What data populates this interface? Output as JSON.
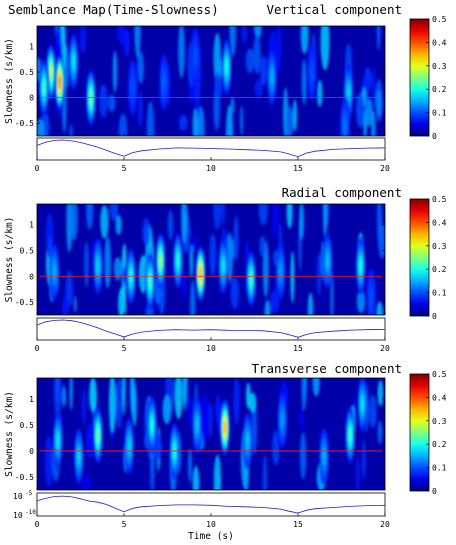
{
  "figure_title": "Semblance Map(Time-Slowness)",
  "colors": {
    "redline": "#ff2020",
    "trace": "#1c1cd6",
    "frame": "#000000",
    "colormap": "jet"
  },
  "chart_data": [
    {
      "type": "heatmap",
      "title": "Vertical component",
      "xlabel": "",
      "ylabel": "Slowness (s/km)",
      "xlim": [
        0,
        20
      ],
      "ylim": [
        -0.75,
        1.4
      ],
      "yticks": [
        -0.5,
        0,
        0.5,
        1
      ],
      "xticks": [
        0,
        5,
        10,
        15,
        20
      ],
      "colorbar": {
        "min": 0,
        "max": 0.5,
        "ticks": [
          0,
          0.1,
          0.2,
          0.3,
          0.4,
          0.5
        ]
      },
      "reference_line": {
        "slowness": 0,
        "color": "#ff2020"
      },
      "hotspots": [
        {
          "t": 1.3,
          "s": 0.3,
          "value": 0.38
        },
        {
          "t": 0.8,
          "s": 0.5,
          "value": 0.28
        },
        {
          "t": 0.4,
          "s": 0.2,
          "value": 0.22
        },
        {
          "t": 3.1,
          "s": 0.0,
          "value": 0.24
        },
        {
          "t": 2.1,
          "s": 0.7,
          "value": 0.18
        },
        {
          "t": 10.9,
          "s": 0.6,
          "value": 0.2
        },
        {
          "t": 13.5,
          "s": 0.4,
          "value": 0.15
        },
        {
          "t": 17.9,
          "s": 0.1,
          "value": 0.17
        },
        {
          "t": 17.7,
          "s": -0.55,
          "value": 0.12
        },
        {
          "t": 5.5,
          "s": 0.2,
          "value": 0.1
        },
        {
          "t": 7.3,
          "s": 0.3,
          "value": 0.11
        },
        {
          "t": 9.1,
          "s": 0.8,
          "value": 0.1
        },
        {
          "t": 15.8,
          "s": 0.5,
          "value": 0.1
        }
      ],
      "trace": {
        "t": [
          0,
          0.5,
          1,
          1.5,
          2,
          2.5,
          3,
          3.5,
          4,
          4.5,
          5,
          5.5,
          6,
          7,
          8,
          9,
          10,
          11,
          12,
          13,
          14,
          14.5,
          15,
          15.5,
          16,
          17,
          18,
          19,
          20
        ],
        "level": [
          0.7,
          0.88,
          0.98,
          1.0,
          0.95,
          0.86,
          0.74,
          0.6,
          0.42,
          0.25,
          0.1,
          0.3,
          0.4,
          0.5,
          0.56,
          0.55,
          0.53,
          0.5,
          0.46,
          0.42,
          0.34,
          0.22,
          0.07,
          0.28,
          0.38,
          0.48,
          0.52,
          0.55,
          0.56
        ]
      }
    },
    {
      "type": "heatmap",
      "title": "Radial component",
      "xlabel": "",
      "ylabel": "Slowness (s/km)",
      "xlim": [
        0,
        20
      ],
      "ylim": [
        -0.75,
        1.4
      ],
      "yticks": [
        -0.5,
        0,
        0.5,
        1
      ],
      "xticks": [
        0,
        5,
        10,
        15,
        20
      ],
      "colorbar": {
        "min": 0,
        "max": 0.5,
        "ticks": [
          0,
          0.1,
          0.2,
          0.3,
          0.4,
          0.5
        ]
      },
      "reference_line": {
        "slowness": 0,
        "color": "#ff2020"
      },
      "hotspots": [
        {
          "t": 9.4,
          "s": 0.05,
          "value": 0.35
        },
        {
          "t": 7.1,
          "s": 0.3,
          "value": 0.26
        },
        {
          "t": 6.5,
          "s": -0.1,
          "value": 0.22
        },
        {
          "t": 8.1,
          "s": 0.3,
          "value": 0.2
        },
        {
          "t": 5.4,
          "s": 0.0,
          "value": 0.2
        },
        {
          "t": 12.3,
          "s": -0.05,
          "value": 0.22
        },
        {
          "t": 10.7,
          "s": 0.2,
          "value": 0.18
        },
        {
          "t": 3.5,
          "s": 0.2,
          "value": 0.17
        },
        {
          "t": 1.0,
          "s": 0.1,
          "value": 0.15
        },
        {
          "t": 18.6,
          "s": 0.2,
          "value": 0.2
        },
        {
          "t": 16.7,
          "s": 0.3,
          "value": 0.16
        },
        {
          "t": 14.0,
          "s": 0.1,
          "value": 0.14
        },
        {
          "t": 19.2,
          "s": -0.4,
          "value": 0.1
        }
      ],
      "trace": {
        "t": [
          0,
          0.5,
          1,
          1.5,
          2,
          2.5,
          3,
          3.5,
          4,
          4.5,
          5,
          5.5,
          6,
          7,
          8,
          9,
          10,
          11,
          12,
          13,
          14,
          14.5,
          15,
          15.5,
          16,
          17,
          18,
          19,
          20
        ],
        "level": [
          0.72,
          0.9,
          0.98,
          1.0,
          0.96,
          0.86,
          0.72,
          0.56,
          0.38,
          0.22,
          0.06,
          0.22,
          0.33,
          0.42,
          0.46,
          0.44,
          0.46,
          0.43,
          0.42,
          0.4,
          0.3,
          0.18,
          0.04,
          0.2,
          0.3,
          0.38,
          0.44,
          0.46,
          0.48
        ]
      }
    },
    {
      "type": "heatmap",
      "title": "Transverse component",
      "xlabel": "Time (s)",
      "ylabel": "Slowness (s/km)",
      "xlim": [
        0,
        20
      ],
      "ylim": [
        -0.75,
        1.4
      ],
      "yticks": [
        -0.5,
        0,
        0.5,
        1
      ],
      "xticks": [
        0,
        5,
        10,
        15,
        20
      ],
      "colorbar": {
        "min": 0,
        "max": 0.5,
        "ticks": [
          0,
          0.1,
          0.2,
          0.3,
          0.4,
          0.5
        ]
      },
      "reference_line": {
        "slowness": 0,
        "color": "#ff2020"
      },
      "hotspots": [
        {
          "t": 10.8,
          "s": 0.45,
          "value": 0.35
        },
        {
          "t": 3.5,
          "s": 0.3,
          "value": 0.24
        },
        {
          "t": 6.6,
          "s": 0.5,
          "value": 0.2
        },
        {
          "t": 7.9,
          "s": 0.0,
          "value": 0.2
        },
        {
          "t": 1.2,
          "s": 0.2,
          "value": 0.18
        },
        {
          "t": 2.4,
          "s": -0.1,
          "value": 0.17
        },
        {
          "t": 5.3,
          "s": 0.1,
          "value": 0.17
        },
        {
          "t": 9.2,
          "s": 0.5,
          "value": 0.16
        },
        {
          "t": 12.1,
          "s": 0.2,
          "value": 0.16
        },
        {
          "t": 18.0,
          "s": 0.3,
          "value": 0.22
        },
        {
          "t": 18.7,
          "s": 0.9,
          "value": 0.18
        },
        {
          "t": 16.5,
          "s": -0.1,
          "value": 0.15
        },
        {
          "t": 14.1,
          "s": 0.6,
          "value": 0.14
        }
      ],
      "trace": {
        "t": [
          0,
          0.5,
          1,
          1.5,
          2,
          2.5,
          3,
          3.5,
          4,
          4.5,
          5,
          5.5,
          6,
          7,
          8,
          9,
          10,
          11,
          12,
          13,
          14,
          14.5,
          15,
          15.5,
          16,
          17,
          18,
          19,
          20
        ],
        "level": [
          0.7,
          0.82,
          0.92,
          0.94,
          0.9,
          0.8,
          0.68,
          0.62,
          0.5,
          0.3,
          0.12,
          0.3,
          0.38,
          0.44,
          0.48,
          0.48,
          0.46,
          0.4,
          0.38,
          0.34,
          0.26,
          0.14,
          0.05,
          0.2,
          0.28,
          0.34,
          0.4,
          0.44,
          0.46
        ]
      },
      "trace_axis_labels": {
        "top_base": "10",
        "top_exp": "-5",
        "bottom_base": "10",
        "bottom_exp": "-10"
      }
    }
  ]
}
